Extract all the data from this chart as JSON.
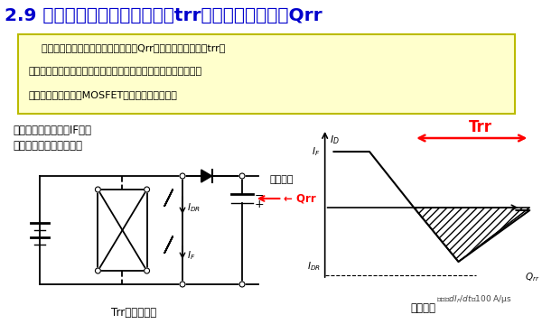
{
  "title": "2.9 内部二极管的反向恢复时间trr、反向恢复电荷量Qrr",
  "title_color": "#0000CC",
  "title_fontsize": 14.5,
  "bg_color": "#FFFFFF",
  "box_bg_color": "#FFFFCC",
  "box_border_color": "#BBBB00",
  "box_text_lines": [
    "    二极管可视为一种电容。积累的电荷Qrr完全放掉需要时间为trr。",
    "另外，由于反向恢复时，处于短路状态，损耗很大。因此内部寄生",
    "二极管的电容特性使MOSFET开关频率受到限制。"
  ],
  "left_text_line1": "寄生二极管通过电流IF后，",
  "left_text_line2": "让电压反向以进行测试。",
  "circuit_label": "Trr的测试电路",
  "waveform_label": "测试波形",
  "qrr_label": "← Qrr",
  "trr_label": "Trr",
  "forward_label": "正向电流",
  "id_label": "$I_D$",
  "if_label": "$I_F$",
  "idr_label": "$I_{DR}$",
  "qrr_curve_label": "$Q_{rr}$",
  "slope_label": "倾き：$dI_F/dt$＝100 A/μs"
}
